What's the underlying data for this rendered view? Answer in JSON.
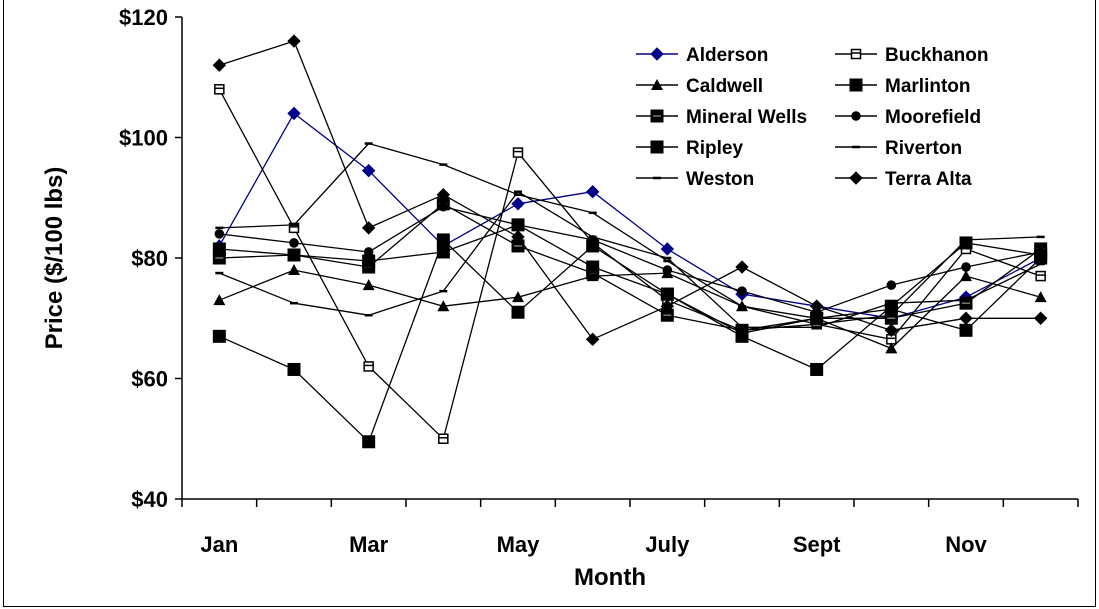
{
  "chart_data": {
    "type": "line",
    "title": "",
    "xlabel": "Month",
    "ylabel": "Price ($/100 lbs)",
    "ylim": [
      40,
      120
    ],
    "yticks": [
      "$40",
      "$60",
      "$80",
      "$100",
      "$120"
    ],
    "ytick_values": [
      40,
      60,
      80,
      100,
      120
    ],
    "months": 12,
    "xtick_labels": [
      {
        "month": 1,
        "label": "Jan"
      },
      {
        "month": 3,
        "label": "Mar"
      },
      {
        "month": 5,
        "label": "May"
      },
      {
        "month": 7,
        "label": "July"
      },
      {
        "month": 9,
        "label": "Sept"
      },
      {
        "month": 11,
        "label": "Nov"
      }
    ],
    "grid": false,
    "legend_position": "top-right",
    "series": [
      {
        "name": "Alderson",
        "color": "#00008B",
        "marker": "diamond",
        "values": [
          82,
          104,
          94.5,
          82,
          89,
          91,
          81.5,
          74,
          72,
          70,
          73.5,
          80
        ]
      },
      {
        "name": "Buckhanon",
        "color": "#000000",
        "marker": "open-square",
        "values": [
          108,
          85,
          62,
          50,
          97.5,
          82.5,
          73,
          68,
          69,
          66.5,
          81.5,
          77
        ]
      },
      {
        "name": "Caldwell",
        "color": "#000000",
        "marker": "triangle",
        "values": [
          73,
          78,
          75.5,
          72,
          73.5,
          77,
          77.5,
          72,
          70,
          65,
          77,
          73.5
        ]
      },
      {
        "name": "Marlinton",
        "color": "#000000",
        "marker": "square",
        "values": [
          67,
          61.5,
          49.5,
          83,
          71,
          82,
          74,
          67,
          61.5,
          72,
          82.5,
          80.5
        ]
      },
      {
        "name": "Mineral Wells",
        "color": "#000000",
        "marker": "square-x",
        "values": [
          80,
          80.5,
          78.5,
          89,
          82,
          77.5,
          70.5,
          68,
          70,
          70,
          72.5,
          81.5
        ]
      },
      {
        "name": "Moorefield",
        "color": "#000000",
        "marker": "circle",
        "values": [
          84,
          82.5,
          81,
          88.5,
          85.5,
          83,
          78,
          74.5,
          71,
          75.5,
          78.5,
          81
        ]
      },
      {
        "name": "Ripley",
        "color": "#000000",
        "marker": "square",
        "values": [
          81.5,
          80.5,
          79.5,
          81,
          85.5,
          78.5,
          74,
          67.5,
          70,
          71.5,
          68,
          80
        ]
      },
      {
        "name": "Riverton",
        "color": "#000000",
        "marker": "dash",
        "values": [
          85,
          85.5,
          99,
          95.5,
          90.5,
          87.5,
          79.5,
          72,
          69,
          70.5,
          83,
          83.5
        ]
      },
      {
        "name": "Weston",
        "color": "#000000",
        "marker": "dash",
        "values": [
          77.5,
          72.5,
          70.5,
          74.5,
          91,
          83.5,
          80,
          68.5,
          68.5,
          72.5,
          73,
          79
        ]
      },
      {
        "name": "Terra Alta",
        "color": "#000000",
        "marker": "diamond",
        "values": [
          112,
          116,
          85,
          90.5,
          83.5,
          66.5,
          72,
          78.5,
          72,
          68,
          70,
          70
        ]
      }
    ]
  }
}
